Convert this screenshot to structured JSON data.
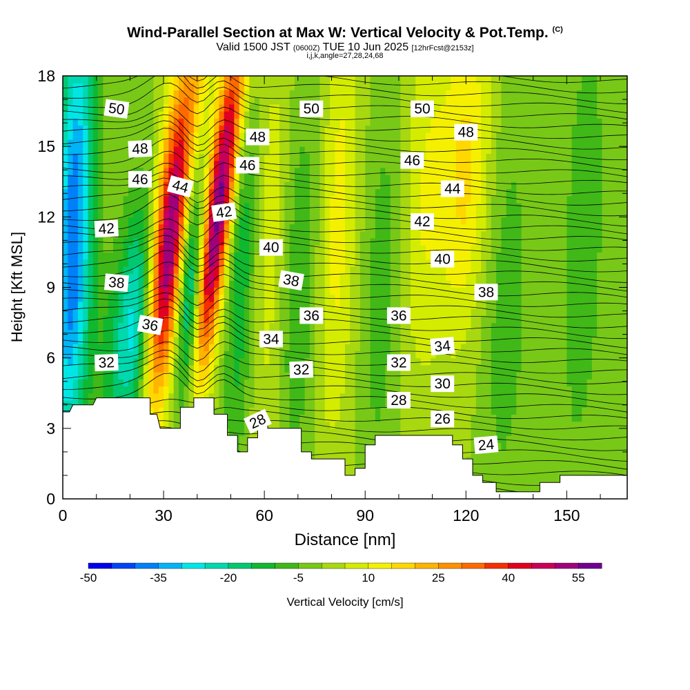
{
  "header": {
    "title": "Wind-Parallel Section at Max W: Vertical Velocity & Pot.Temp.",
    "copyright": "(C)",
    "valid_prefix": "Valid 1500 JST",
    "valid_utc": "(0600Z)",
    "valid_date": "TUE 10 Jun 2025",
    "fcst": "[12hrFcst@2153z]",
    "indices": "i,j,k,angle=27,28,24,68"
  },
  "chart_data": {
    "type": "heatmap",
    "xlabel": "Distance [nm]",
    "ylabel": "Height [Kft MSL]",
    "xlim": [
      0,
      168
    ],
    "ylim": [
      0,
      18
    ],
    "x_ticks": [
      "0",
      "30",
      "60",
      "90",
      "120",
      "150"
    ],
    "x_tick_values": [
      0,
      30,
      60,
      90,
      120,
      150
    ],
    "y_ticks": [
      "0",
      "3",
      "6",
      "9",
      "12",
      "15",
      "18"
    ],
    "y_tick_values": [
      0,
      3,
      6,
      9,
      12,
      15,
      18
    ],
    "colorbar": {
      "label": "Vertical Velocity [cm/s]",
      "tick_labels": [
        "-50",
        "-35",
        "-20",
        "-5",
        "10",
        "25",
        "40",
        "55"
      ],
      "tick_values": [
        -50,
        -35,
        -20,
        -5,
        10,
        25,
        40,
        55
      ],
      "min": -50,
      "max": 60,
      "step": 5,
      "colors": [
        "#0000ee",
        "#0044f5",
        "#0080f8",
        "#00b4f5",
        "#00e6e6",
        "#00d8b0",
        "#00c870",
        "#10b830",
        "#40b818",
        "#78c818",
        "#a8d810",
        "#d4ec00",
        "#f5f000",
        "#ffd800",
        "#ffb400",
        "#ff9000",
        "#ff6a00",
        "#f53000",
        "#e00020",
        "#c8005a",
        "#a0007a",
        "#700090"
      ]
    },
    "velocity_field": {
      "background_cm_s": 0,
      "features": [
        {
          "x": 3,
          "z": 11,
          "w": -40,
          "sx": 4,
          "sz": 7
        },
        {
          "x": 16,
          "z": 6,
          "w": -12,
          "sx": 5,
          "sz": 3
        },
        {
          "x": 23,
          "z": 7,
          "w": -30,
          "sx": 4,
          "sz": 4
        },
        {
          "x": 32,
          "z": 11,
          "w": 60,
          "sx": 4,
          "sz": 6
        },
        {
          "x": 38,
          "z": 9,
          "w": -35,
          "sx": 3,
          "sz": 5
        },
        {
          "x": 46,
          "z": 12,
          "w": 58,
          "sx": 3,
          "sz": 6
        },
        {
          "x": 53,
          "z": 10,
          "w": -15,
          "sx": 3,
          "sz": 6
        },
        {
          "x": 62,
          "z": 11,
          "w": 8,
          "sx": 4,
          "sz": 7
        },
        {
          "x": 70,
          "z": 9,
          "w": -10,
          "sx": 4,
          "sz": 6
        },
        {
          "x": 82,
          "z": 12,
          "w": 12,
          "sx": 4,
          "sz": 7
        },
        {
          "x": 95,
          "z": 9,
          "w": -8,
          "sx": 4,
          "sz": 6
        },
        {
          "x": 108,
          "z": 13,
          "w": 10,
          "sx": 5,
          "sz": 6
        },
        {
          "x": 120,
          "z": 14,
          "w": 16,
          "sx": 5,
          "sz": 5
        },
        {
          "x": 132,
          "z": 8,
          "w": -8,
          "sx": 5,
          "sz": 6
        },
        {
          "x": 155,
          "z": 11,
          "w": -8,
          "sx": 5,
          "sz": 8
        }
      ]
    },
    "terrain_kft": [
      [
        0,
        3.7
      ],
      [
        2,
        3.7
      ],
      [
        3,
        4.0
      ],
      [
        9,
        4.0
      ],
      [
        10,
        4.3
      ],
      [
        26,
        4.3
      ],
      [
        26,
        3.6
      ],
      [
        28,
        3.6
      ],
      [
        29,
        3.0
      ],
      [
        35,
        3.0
      ],
      [
        35,
        3.9
      ],
      [
        39,
        3.9
      ],
      [
        39,
        4.3
      ],
      [
        45,
        4.3
      ],
      [
        45,
        3.6
      ],
      [
        49,
        3.6
      ],
      [
        49,
        2.7
      ],
      [
        52,
        2.7
      ],
      [
        52,
        2.0
      ],
      [
        55,
        2.0
      ],
      [
        55,
        2.6
      ],
      [
        58,
        2.6
      ],
      [
        58,
        3.3
      ],
      [
        61,
        3.3
      ],
      [
        61,
        3.0
      ],
      [
        71,
        3.0
      ],
      [
        71,
        2.0
      ],
      [
        74,
        2.0
      ],
      [
        74,
        1.7
      ],
      [
        84,
        1.7
      ],
      [
        84,
        1.0
      ],
      [
        87,
        1.0
      ],
      [
        87,
        1.3
      ],
      [
        90,
        1.3
      ],
      [
        90,
        2.3
      ],
      [
        93,
        2.3
      ],
      [
        93,
        2.7
      ],
      [
        116,
        2.7
      ],
      [
        116,
        2.3
      ],
      [
        119,
        2.3
      ],
      [
        119,
        1.7
      ],
      [
        122,
        1.7
      ],
      [
        122,
        1.0
      ],
      [
        125,
        1.0
      ],
      [
        125,
        0.7
      ],
      [
        129,
        0.7
      ],
      [
        129,
        0.3
      ],
      [
        142,
        0.3
      ],
      [
        142,
        0.7
      ],
      [
        148,
        0.7
      ],
      [
        148,
        1.0
      ],
      [
        168,
        1.0
      ]
    ],
    "contour_labels": [
      {
        "text": "50",
        "x": 16,
        "z": 16.6,
        "angle": 8
      },
      {
        "text": "48",
        "x": 23,
        "z": 14.9,
        "angle": -3
      },
      {
        "text": "46",
        "x": 23,
        "z": 13.6,
        "angle": 0
      },
      {
        "text": "44",
        "x": 35,
        "z": 13.3,
        "angle": 15
      },
      {
        "text": "42",
        "x": 13,
        "z": 11.5,
        "angle": -3
      },
      {
        "text": "42",
        "x": 48,
        "z": 12.2,
        "angle": -8
      },
      {
        "text": "38",
        "x": 16,
        "z": 9.2,
        "angle": 5
      },
      {
        "text": "36",
        "x": 26,
        "z": 7.4,
        "angle": 10
      },
      {
        "text": "32",
        "x": 13,
        "z": 5.8,
        "angle": -2
      },
      {
        "text": "50",
        "x": 74,
        "z": 16.6,
        "angle": 0
      },
      {
        "text": "48",
        "x": 58,
        "z": 15.4,
        "angle": 0
      },
      {
        "text": "46",
        "x": 55,
        "z": 14.2,
        "angle": 0
      },
      {
        "text": "40",
        "x": 62,
        "z": 10.7,
        "angle": 0
      },
      {
        "text": "38",
        "x": 68,
        "z": 9.3,
        "angle": 10
      },
      {
        "text": "36",
        "x": 74,
        "z": 7.8,
        "angle": 0
      },
      {
        "text": "34",
        "x": 62,
        "z": 6.8,
        "angle": 0
      },
      {
        "text": "32",
        "x": 71,
        "z": 5.5,
        "angle": -2
      },
      {
        "text": "28",
        "x": 58,
        "z": 3.3,
        "angle": -25
      },
      {
        "text": "50",
        "x": 107,
        "z": 16.6,
        "angle": 0
      },
      {
        "text": "48",
        "x": 120,
        "z": 15.6,
        "angle": 0
      },
      {
        "text": "46",
        "x": 104,
        "z": 14.4,
        "angle": 0
      },
      {
        "text": "44",
        "x": 116,
        "z": 13.2,
        "angle": 0
      },
      {
        "text": "42",
        "x": 107,
        "z": 11.8,
        "angle": 0
      },
      {
        "text": "40",
        "x": 113,
        "z": 10.2,
        "angle": 0
      },
      {
        "text": "38",
        "x": 126,
        "z": 8.8,
        "angle": 0
      },
      {
        "text": "36",
        "x": 100,
        "z": 7.8,
        "angle": 0
      },
      {
        "text": "34",
        "x": 113,
        "z": 6.5,
        "angle": -5
      },
      {
        "text": "32",
        "x": 100,
        "z": 5.8,
        "angle": 0
      },
      {
        "text": "30",
        "x": 113,
        "z": 4.9,
        "angle": 0
      },
      {
        "text": "28",
        "x": 100,
        "z": 4.2,
        "angle": 0
      },
      {
        "text": "26",
        "x": 113,
        "z": 3.4,
        "angle": 0
      },
      {
        "text": "24",
        "x": 126,
        "z": 2.3,
        "angle": -5
      }
    ]
  }
}
